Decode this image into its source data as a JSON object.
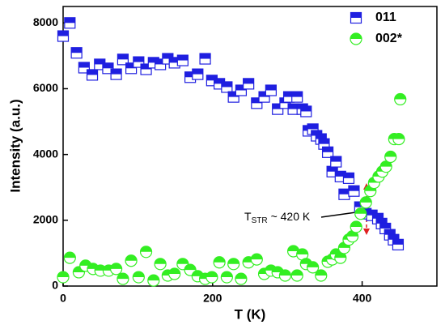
{
  "chart_data": {
    "type": "scatter",
    "xlabel": "T (K)",
    "ylabel": "Intensity (a.u.)",
    "annotation": [
      "T",
      "STR",
      "~ 420 K"
    ],
    "xlim": [
      0,
      500
    ],
    "xticks": [
      0,
      200,
      400
    ],
    "ylim": [
      0,
      8500
    ],
    "yticks": [
      0,
      2000,
      4000,
      6000,
      8000
    ],
    "legend": "upper right",
    "series": [
      {
        "name": "011",
        "color": "#1f1fe0",
        "marker": "square",
        "x": [
          0,
          9,
          18,
          28,
          39,
          49,
          60,
          71,
          80,
          91,
          101,
          111,
          121,
          130,
          140,
          149,
          160,
          170,
          180,
          190,
          199,
          209,
          219,
          228,
          238,
          248,
          259,
          269,
          278,
          287,
          297,
          302,
          308,
          313,
          320,
          325,
          328,
          334,
          339,
          345,
          349,
          354,
          360,
          365,
          371,
          376,
          382,
          389,
          397,
          405,
          413,
          421,
          426,
          431,
          437,
          442,
          448
        ],
        "values": [
          7600,
          8000,
          7090,
          6640,
          6420,
          6740,
          6620,
          6440,
          6890,
          6620,
          6810,
          6590,
          6790,
          6740,
          6910,
          6790,
          6860,
          6350,
          6440,
          6910,
          6250,
          6150,
          6050,
          5750,
          5950,
          6150,
          5560,
          5750,
          5950,
          5380,
          5560,
          5750,
          5380,
          5750,
          5380,
          5310,
          4720,
          4770,
          4570,
          4470,
          4320,
          4070,
          3480,
          3780,
          3330,
          2790,
          3280,
          2890,
          2400,
          2200,
          2150,
          2050,
          1900,
          1750,
          1560,
          1410,
          1260
        ]
      },
      {
        "name": "002*",
        "color": "#33ee22",
        "marker": "circle",
        "x": [
          0,
          9,
          21,
          30,
          40,
          50,
          61,
          71,
          80,
          91,
          101,
          111,
          121,
          130,
          140,
          149,
          160,
          170,
          180,
          190,
          199,
          209,
          219,
          228,
          238,
          248,
          259,
          269,
          278,
          287,
          297,
          308,
          313,
          320,
          325,
          334,
          345,
          354,
          360,
          365,
          371,
          376,
          382,
          387,
          392,
          398,
          405,
          411,
          416,
          422,
          427,
          432,
          438,
          443,
          449,
          451
        ],
        "values": [
          270,
          860,
          420,
          620,
          520,
          470,
          470,
          520,
          220,
          770,
          270,
          1040,
          170,
          670,
          320,
          370,
          670,
          490,
          300,
          220,
          270,
          720,
          270,
          670,
          220,
          720,
          810,
          370,
          470,
          420,
          320,
          1060,
          320,
          960,
          670,
          570,
          320,
          740,
          810,
          960,
          860,
          1160,
          1410,
          1510,
          1800,
          2200,
          2540,
          2890,
          3140,
          3330,
          3480,
          3630,
          3930,
          4470,
          4470,
          5680
        ]
      }
    ]
  }
}
